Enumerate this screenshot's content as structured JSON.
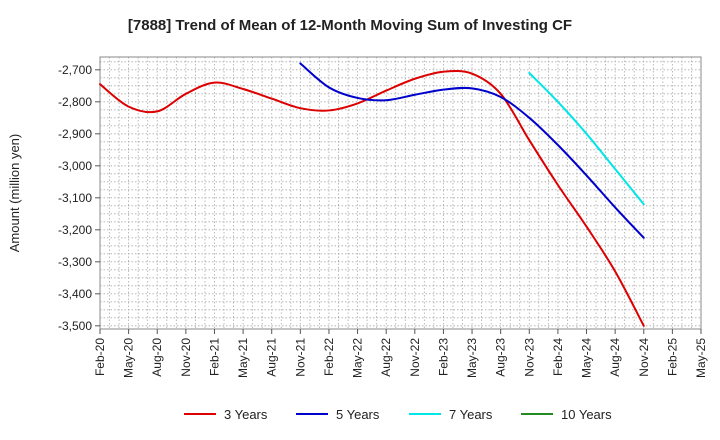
{
  "chart_data": {
    "type": "line",
    "title": "[7888]  Trend of Mean of 12-Month Moving Sum of Investing CF",
    "xlabel": "",
    "ylabel": "Amount (million yen)",
    "ylim": [
      -3510,
      -2660
    ],
    "yticks": [
      -2700,
      -2800,
      -2900,
      -3000,
      -3100,
      -3200,
      -3300,
      -3400,
      -3500
    ],
    "ytick_labels": [
      "-2,700",
      "-2,800",
      "-2,900",
      "-3,000",
      "-3,100",
      "-3,200",
      "-3,300",
      "-3,400",
      "-3,500"
    ],
    "x_start": "Feb-20",
    "x_end": "May-25",
    "xtick_labels": [
      "Feb-20",
      "May-20",
      "Aug-20",
      "Nov-20",
      "Feb-21",
      "May-21",
      "Aug-21",
      "Nov-21",
      "Feb-22",
      "May-22",
      "Aug-22",
      "Nov-22",
      "Feb-23",
      "May-23",
      "Aug-23",
      "Nov-23",
      "Feb-24",
      "May-24",
      "Aug-24",
      "Nov-24",
      "Feb-25",
      "May-25"
    ],
    "grid": true,
    "legend_position": "bottom",
    "series": [
      {
        "name": "3 Years",
        "color": "#dd0000",
        "x": [
          "Feb-20",
          "May-20",
          "Aug-20",
          "Nov-20",
          "Feb-21",
          "May-21",
          "Aug-21",
          "Nov-21",
          "Feb-22",
          "May-22",
          "Aug-22",
          "Nov-22",
          "Feb-23",
          "May-23",
          "Aug-23",
          "Nov-23",
          "Feb-24",
          "May-24",
          "Aug-24",
          "Nov-24"
        ],
        "values": [
          -2745,
          -2815,
          -2830,
          -2775,
          -2740,
          -2760,
          -2790,
          -2820,
          -2827,
          -2805,
          -2765,
          -2728,
          -2706,
          -2712,
          -2775,
          -2920,
          -3060,
          -3190,
          -3330,
          -3500
        ]
      },
      {
        "name": "5 Years",
        "color": "#0000cc",
        "x": [
          "Nov-21",
          "Feb-22",
          "May-22",
          "Aug-22",
          "Nov-22",
          "Feb-23",
          "May-23",
          "Aug-23",
          "Nov-23",
          "Feb-24",
          "May-24",
          "Aug-24",
          "Nov-24"
        ],
        "values": [
          -2680,
          -2755,
          -2788,
          -2795,
          -2778,
          -2762,
          -2758,
          -2785,
          -2850,
          -2935,
          -3030,
          -3130,
          -3225
        ]
      },
      {
        "name": "7 Years",
        "color": "#00e5e5",
        "x": [
          "Nov-23",
          "Feb-24",
          "May-24",
          "Aug-24",
          "Nov-24"
        ],
        "values": [
          -2710,
          -2800,
          -2900,
          -3010,
          -3120
        ]
      },
      {
        "name": "10 Years",
        "color": "#228b22",
        "x": [],
        "values": []
      }
    ]
  }
}
